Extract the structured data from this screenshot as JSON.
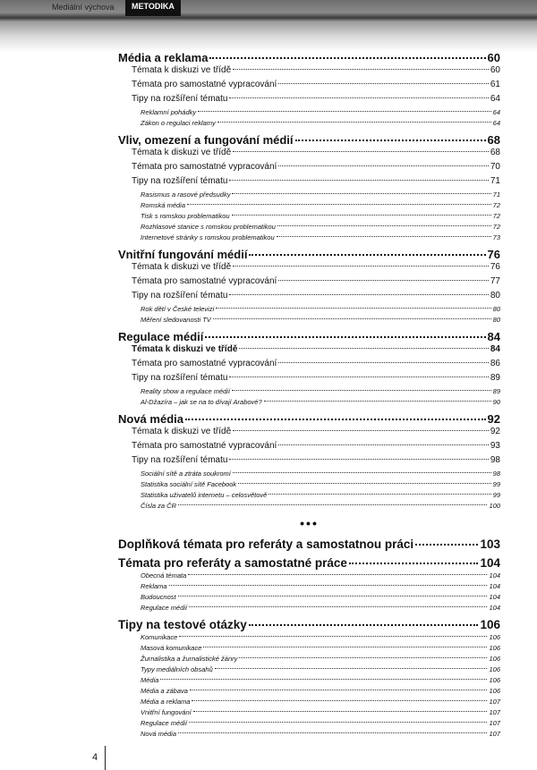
{
  "header": {
    "section": "Mediální výchova",
    "label": "METODIKA"
  },
  "page_number": "4",
  "separator": "•••",
  "toc_part1": [
    {
      "title": "Média a reklama",
      "page": "60",
      "items": [
        {
          "title": "Témata k diskuzi ve třídě",
          "page": "60"
        },
        {
          "title": "Témata pro samostatné vypracování",
          "page": "61"
        },
        {
          "title": "Tipy na rozšíření tématu",
          "page": "64",
          "items": [
            {
              "title": "Reklamní pohádky",
              "page": "64"
            },
            {
              "title": "Zákon o regulaci reklamy",
              "page": "64"
            }
          ]
        }
      ]
    },
    {
      "title": "Vliv, omezení a fungování médií",
      "page": "68",
      "items": [
        {
          "title": "Témata k diskuzi ve třídě",
          "page": "68"
        },
        {
          "title": "Témata pro samostatné vypracování",
          "page": "70"
        },
        {
          "title": "Tipy na rozšíření tématu",
          "page": "71",
          "items": [
            {
              "title": "Rasismus a rasové předsudky",
              "page": "71"
            },
            {
              "title": "Romská média",
              "page": "72"
            },
            {
              "title": "Tisk s romskou problematikou",
              "page": "72"
            },
            {
              "title": "Rozhlasové stanice s romskou problematikou",
              "page": "72"
            },
            {
              "title": "Internetové stránky s romskou problematikou",
              "page": "73"
            }
          ]
        }
      ]
    },
    {
      "title": "Vnitřní fungování médií",
      "page": "76",
      "items": [
        {
          "title": "Témata k diskuzi ve třídě",
          "page": "76"
        },
        {
          "title": "Témata pro samostatné vypracování",
          "page": "77"
        },
        {
          "title": "Tipy na rozšíření tématu",
          "page": "80",
          "items": [
            {
              "title": "Rok dětí v České televizi",
              "page": "80"
            },
            {
              "title": "Měření sledovanosti TV",
              "page": "80"
            }
          ]
        }
      ]
    },
    {
      "title": "Regulace médií",
      "page": "84",
      "items": [
        {
          "title": "Témata k diskuzi ve třídě",
          "page": "84",
          "bold": true
        },
        {
          "title": "Témata pro samostatné vypracování",
          "page": "86"
        },
        {
          "title": "Tipy na rozšíření tématu",
          "page": "89",
          "items": [
            {
              "title": "Reality show a regulace médií",
              "page": "89"
            },
            {
              "title": "Al-Džazíra – jak se na to dívají Arabové?",
              "page": "90"
            }
          ]
        }
      ]
    },
    {
      "title": "Nová média",
      "page": "92",
      "items": [
        {
          "title": "Témata k diskuzi ve třídě",
          "page": "92"
        },
        {
          "title": "Témata pro samostatné vypracování",
          "page": "93"
        },
        {
          "title": "Tipy na rozšíření tématu",
          "page": "98",
          "items": [
            {
              "title": "Sociální sítě a ztráta soukromí",
              "page": "98"
            },
            {
              "title": "Statistika sociální sítě Facebook",
              "page": "99"
            },
            {
              "title": "Statistika uživatelů internetu – celosvětově",
              "page": "99"
            },
            {
              "title": "Čísla za ČR",
              "page": "100"
            }
          ]
        }
      ]
    }
  ],
  "toc_part2": [
    {
      "title": "Doplňková témata pro referáty a samostatnou práci",
      "page": "103",
      "big": true,
      "items": []
    },
    {
      "title": "Témata pro referáty a samostatné práce",
      "page": "104",
      "big": true,
      "subitems": [
        {
          "title": "Obecná témata",
          "page": "104"
        },
        {
          "title": "Reklama",
          "page": "104"
        },
        {
          "title": "Budoucnost",
          "page": "104"
        },
        {
          "title": "Regulace médií",
          "page": "104"
        }
      ]
    },
    {
      "title": "Tipy na testové otázky",
      "page": "106",
      "big": true,
      "subitems": [
        {
          "title": "Komunikace",
          "page": "106"
        },
        {
          "title": "Masová komunikace",
          "page": "106"
        },
        {
          "title": "Žurnalistika a žurnalistické žánry",
          "page": "106"
        },
        {
          "title": "Typy mediálních obsahů",
          "page": "106"
        },
        {
          "title": "Média",
          "page": "106"
        },
        {
          "title": "Média a zábava",
          "page": "106"
        },
        {
          "title": "Média a reklama",
          "page": "107"
        },
        {
          "title": "Vnitřní fungování",
          "page": "107"
        },
        {
          "title": "Regulace médií",
          "page": "107"
        },
        {
          "title": "Nová média",
          "page": "107"
        }
      ]
    }
  ]
}
